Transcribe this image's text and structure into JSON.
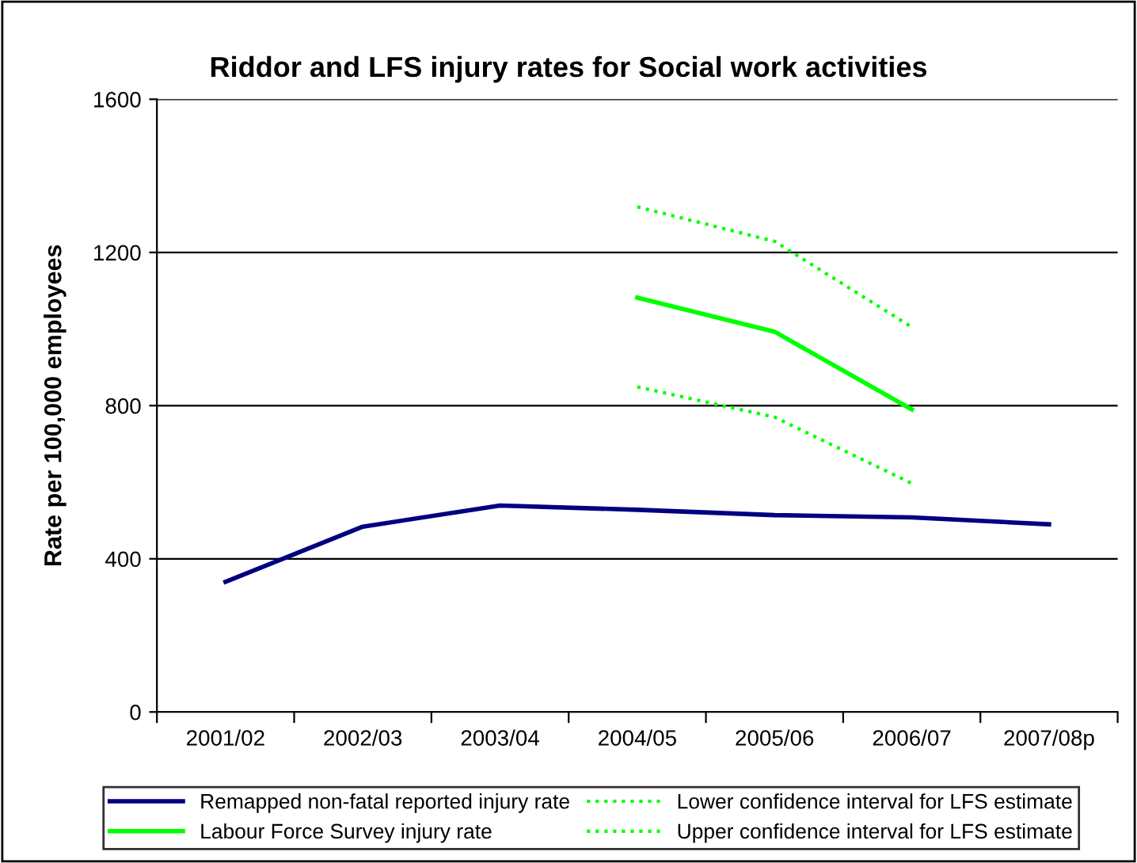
{
  "chart_data": {
    "type": "line",
    "title": "Riddor and LFS injury rates for Social work activities",
    "ylabel": "Rate per 100,000 employees",
    "categories": [
      "2001/02",
      "2002/03",
      "2003/04",
      "2004/05",
      "2005/06",
      "2006/07",
      "2007/08p"
    ],
    "series": [
      {
        "name": "Remapped non-fatal reported injury rate",
        "color": "#000080",
        "line_style": "solid",
        "values": [
          340,
          484,
          539,
          528,
          514,
          508,
          490
        ]
      },
      {
        "name": "Labour Force Survey injury rate",
        "color": "#00ff00",
        "line_style": "solid",
        "values": [
          null,
          null,
          null,
          1082,
          993,
          790,
          null
        ]
      },
      {
        "name": "Lower confidence interval for LFS estimate",
        "color": "#00ff00",
        "line_style": "dotted",
        "values": [
          null,
          null,
          null,
          849,
          770,
          597,
          null
        ]
      },
      {
        "name": "Upper confidence interval for LFS estimate",
        "color": "#00ff00",
        "line_style": "dotted",
        "values": [
          null,
          null,
          null,
          1319,
          1229,
          1005,
          null
        ]
      }
    ],
    "ylim": [
      0,
      1600
    ],
    "yticks": [
      0,
      400,
      800,
      1200,
      1600
    ],
    "grid": "y",
    "legend": "bottom",
    "marker": "none"
  }
}
